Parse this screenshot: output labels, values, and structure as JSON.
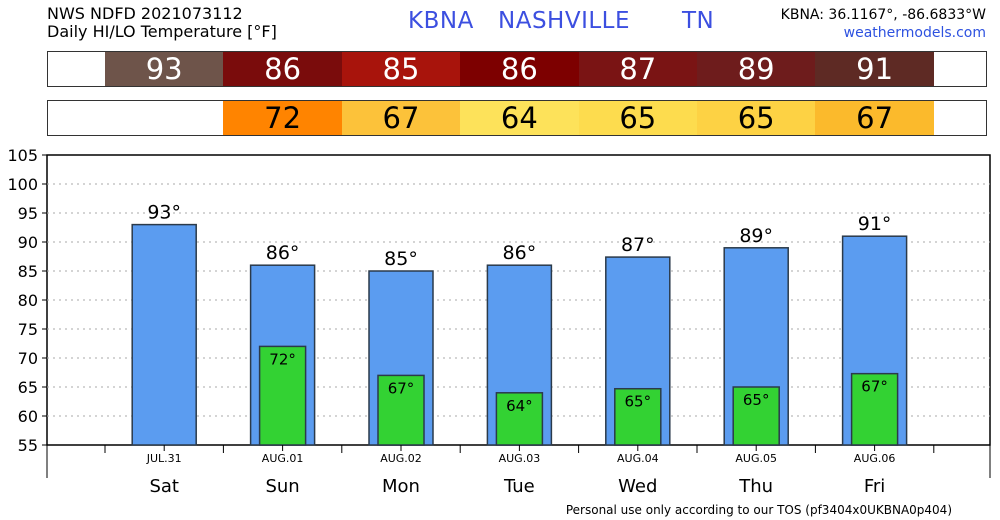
{
  "header": {
    "line1": "NWS NDFD 2021073112",
    "line2": "Daily HI/LO Temperature [°F]",
    "station_id": "KBNA",
    "city": "NASHVILLE",
    "state": "TN",
    "coords": "KBNA: 36.1167°, -86.6833°W",
    "site": "weathermodels.com"
  },
  "strips": {
    "hi": [
      "93",
      "86",
      "85",
      "86",
      "87",
      "89",
      "91"
    ],
    "hi_colors": [
      "#6e544a",
      "#7a0c0c",
      "#a8140c",
      "#7d0000",
      "#7a1414",
      "#6e1c1c",
      "#5e2a24"
    ],
    "lo": [
      "",
      "72",
      "67",
      "64",
      "65",
      "65",
      "67"
    ],
    "lo_colors": [
      "#ffffff",
      "#ff8400",
      "#fcc23a",
      "#fde25a",
      "#fddc4e",
      "#fdd244",
      "#fbba2c"
    ],
    "hi_text_color": "#ffffff",
    "lo_text_color": "#000000"
  },
  "chart_data": {
    "type": "bar",
    "categories": [
      "Sat",
      "Sun",
      "Mon",
      "Tue",
      "Wed",
      "Thu",
      "Fri"
    ],
    "dates": [
      "JUL.31",
      "AUG.01",
      "AUG.02",
      "AUG.03",
      "AUG.04",
      "AUG.05",
      "AUG.06"
    ],
    "series": [
      {
        "name": "HI",
        "values": [
          93,
          86,
          85,
          86,
          87.4,
          89,
          91
        ],
        "color": "#5b9cf0"
      },
      {
        "name": "LO",
        "values": [
          null,
          72,
          67,
          64,
          64.7,
          65,
          67.3
        ],
        "color": "#33d233"
      }
    ],
    "labels_hi": [
      "93°",
      "86°",
      "85°",
      "86°",
      "87°",
      "89°",
      "91°"
    ],
    "labels_lo": [
      "",
      "72°",
      "67°",
      "64°",
      "65°",
      "65°",
      "67°"
    ],
    "ylim": [
      55,
      105
    ],
    "yticks": [
      55,
      60,
      65,
      70,
      75,
      80,
      85,
      90,
      95,
      100,
      105
    ],
    "grid": true,
    "xlabel": "",
    "ylabel": ""
  },
  "footer": "Personal use only according to our TOS (pf3404x0UKBNA0p404)"
}
